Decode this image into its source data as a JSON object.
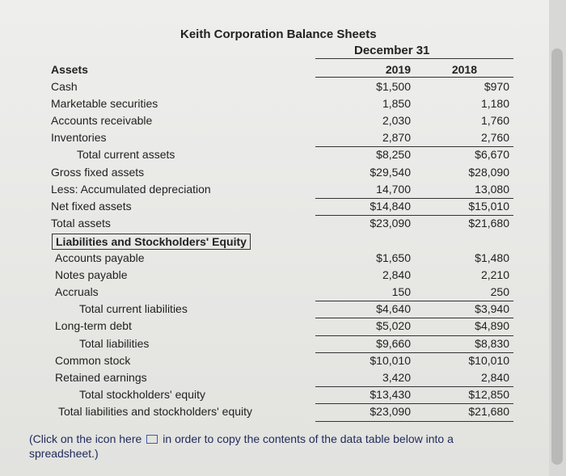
{
  "header": {
    "title": "Keith Corporation Balance Sheets",
    "period": "December 31",
    "columns": [
      "2019",
      "2018"
    ]
  },
  "table": {
    "section": "Assets",
    "rows": [
      [
        "Cash",
        "$1,500",
        "$970"
      ],
      [
        "Marketable securities",
        "1,850",
        "1,180"
      ],
      [
        "Accounts receivable",
        "2,030",
        "1,760"
      ],
      [
        "Inventories",
        "2,870",
        "2,760"
      ],
      [
        "Total current assets",
        "$8,250",
        "$6,670"
      ],
      [
        "Gross fixed assets",
        "$29,540",
        "$28,090"
      ],
      [
        "Less: Accumulated depreciation",
        "14,700",
        "13,080"
      ],
      [
        "Net fixed assets",
        "$14,840",
        "$15,010"
      ],
      [
        "Total assets",
        "$23,090",
        "$21,680"
      ],
      [
        "Liabilities and Stockholders' Equity"
      ],
      [
        "Accounts payable",
        "$1,650",
        "$1,480"
      ],
      [
        "Notes payable",
        "2,840",
        "2,210"
      ],
      [
        "Accruals",
        "150",
        "250"
      ],
      [
        "Total current liabilities",
        "$4,640",
        "$3,940"
      ],
      [
        "Long-term debt",
        "$5,020",
        "$4,890"
      ],
      [
        "Total liabilities",
        "$9,660",
        "$8,830"
      ],
      [
        "Common stock",
        "$10,010",
        "$10,010"
      ],
      [
        "Retained earnings",
        "3,420",
        "2,840"
      ],
      [
        "Total stockholders' equity",
        "$13,430",
        "$12,850"
      ],
      [
        "Total liabilities and stockholders' equity",
        "$23,090",
        "$21,680"
      ]
    ]
  },
  "footer": {
    "before_icon": "(Click on the icon here",
    "after_icon": "in order to copy the contents of the data table below into a spreadsheet.)"
  }
}
